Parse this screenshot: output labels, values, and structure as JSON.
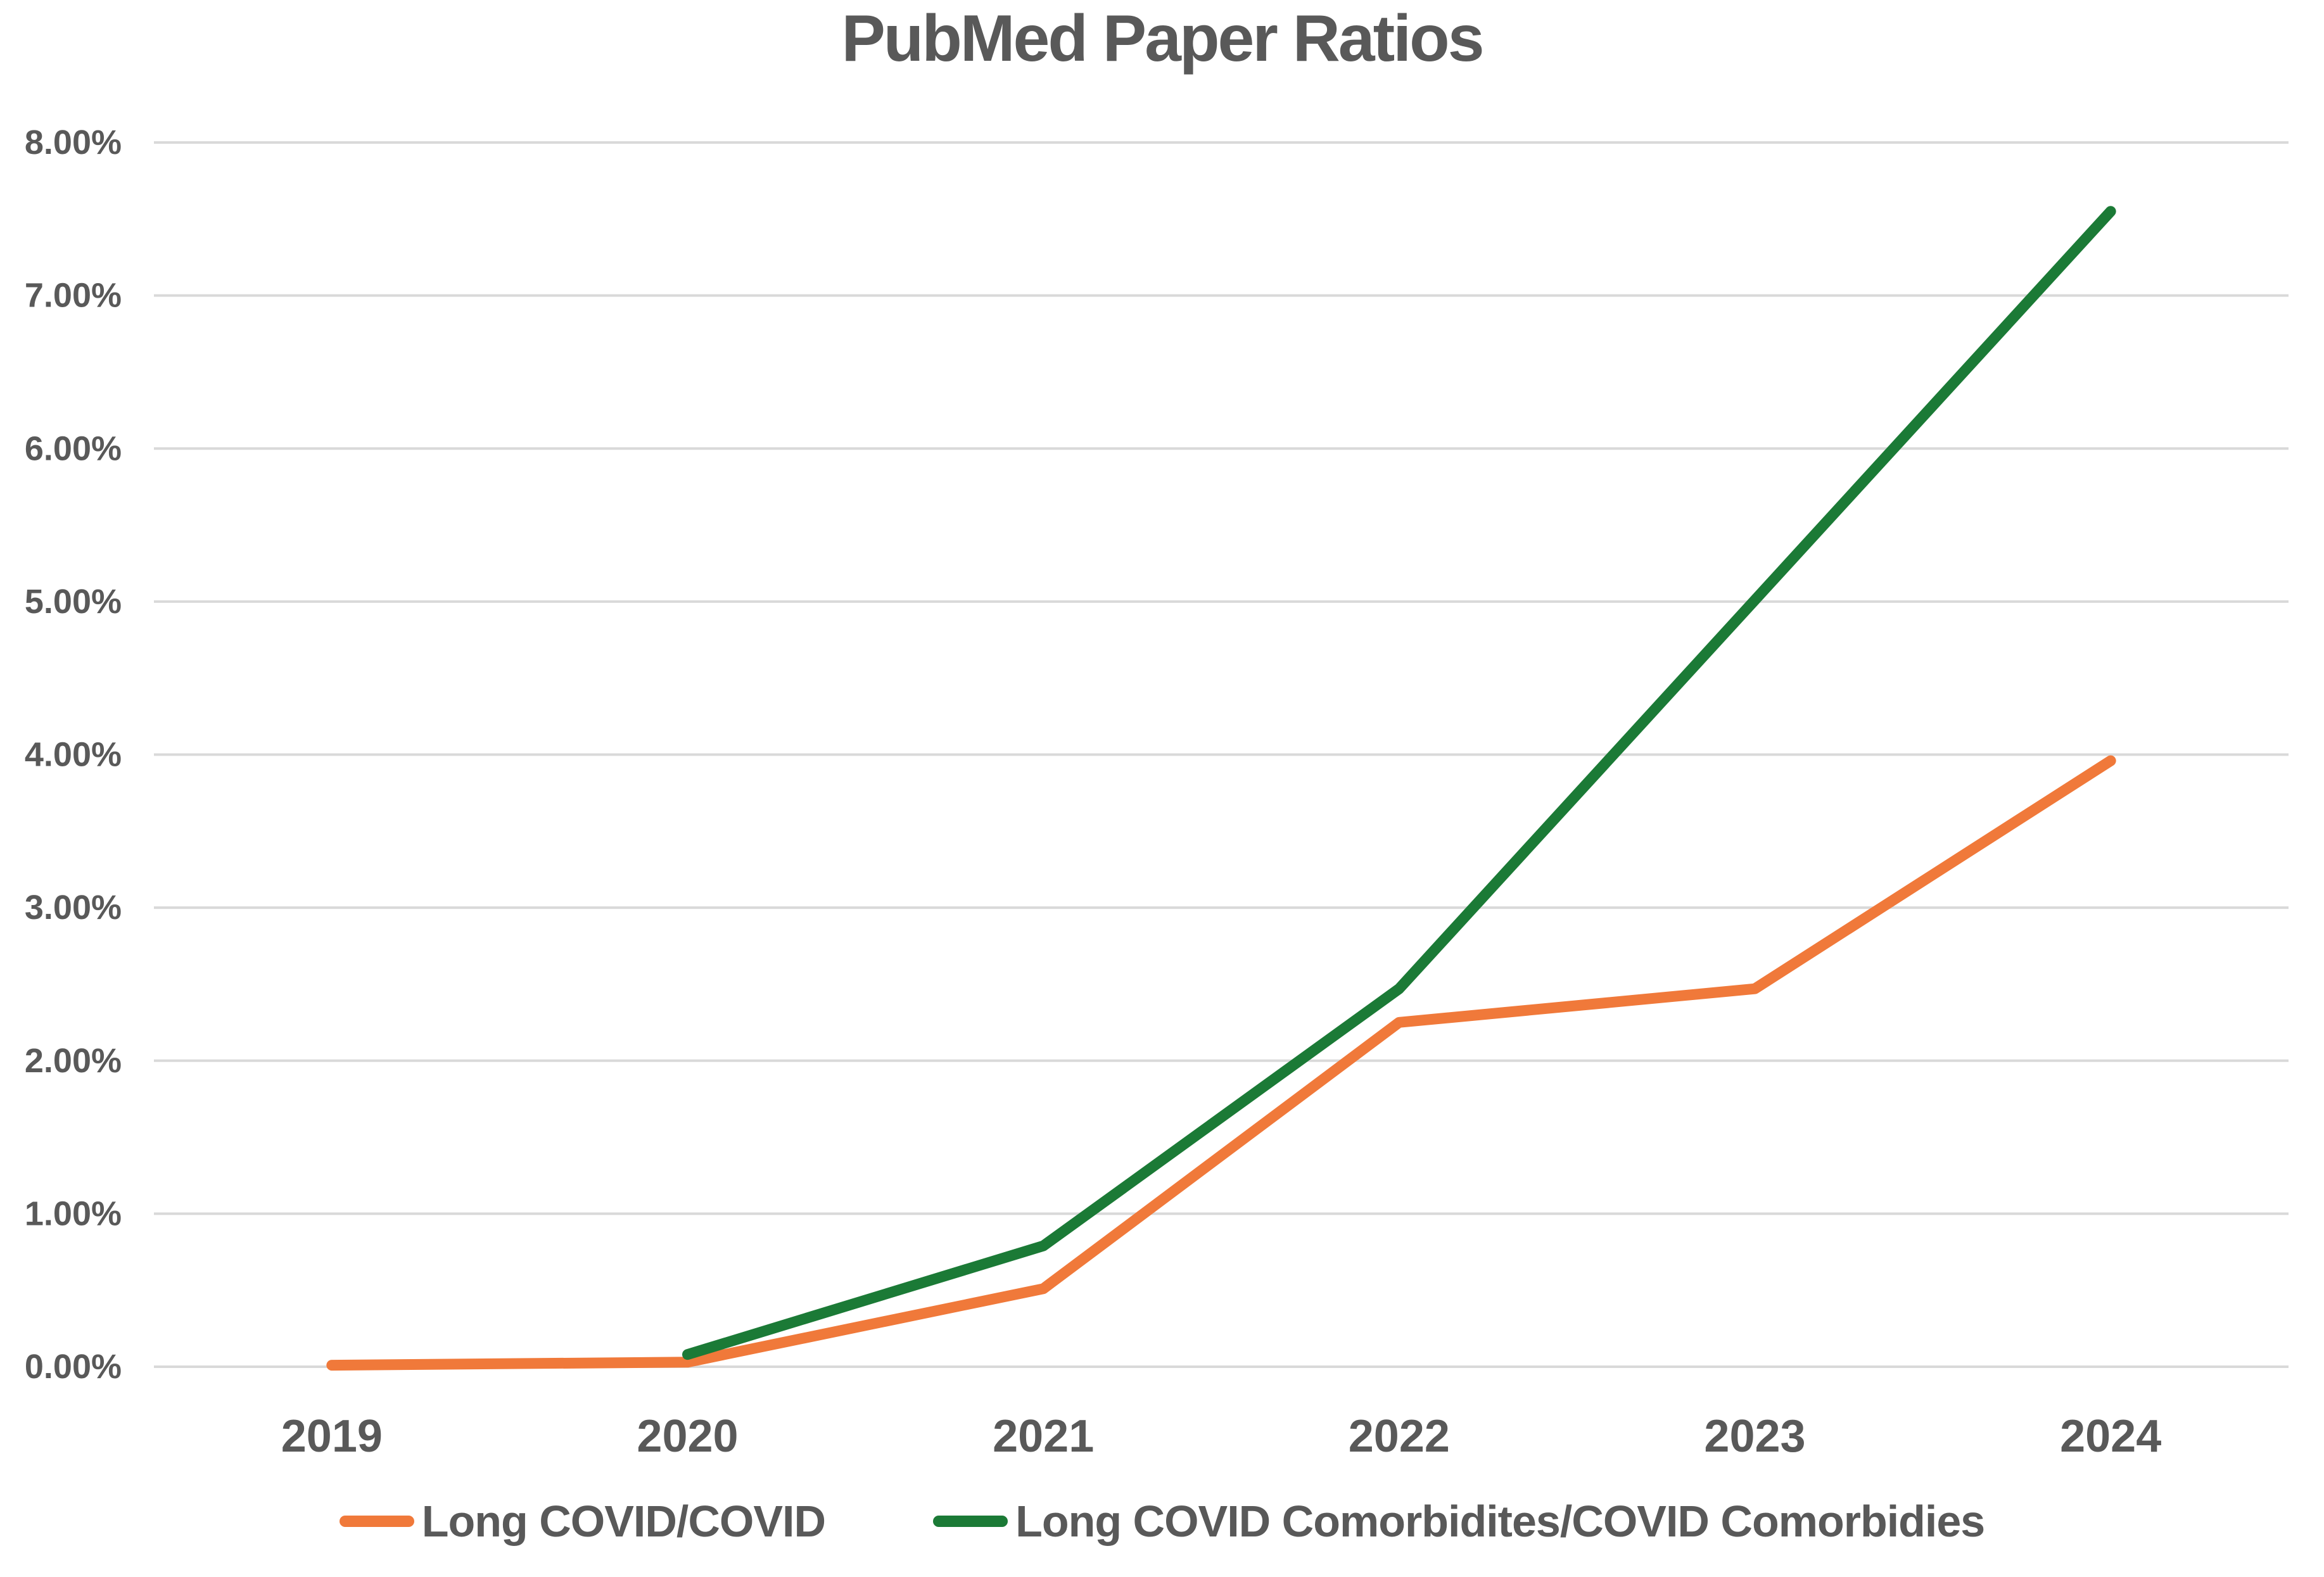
{
  "chart_data": {
    "type": "line",
    "title": "PubMed Paper Ratios",
    "categories": [
      "2019",
      "2020",
      "2021",
      "2022",
      "2023",
      "2024"
    ],
    "series": [
      {
        "name": "Long COVID/COVID",
        "color": "#F0793A",
        "values": [
          0.01,
          0.03,
          0.51,
          2.25,
          2.47,
          3.96
        ]
      },
      {
        "name": "Long COVID Comorbidites/COVID Comorbidies",
        "color": "#1B7A36",
        "values": [
          null,
          0.08,
          0.79,
          2.47,
          5.01,
          7.55
        ]
      }
    ],
    "xlabel": "",
    "ylabel": "",
    "values_unit": "percent",
    "y_axis": {
      "min": 0,
      "max": 8,
      "step": 1,
      "tick_labels": [
        "0.00%",
        "1.00%",
        "2.00%",
        "3.00%",
        "4.00%",
        "5.00%",
        "6.00%",
        "7.00%",
        "8.00%"
      ]
    },
    "grid": true,
    "legend_position": "bottom"
  },
  "colors": {
    "text": "#595959",
    "gridline": "#D9D9D9",
    "background": "#FFFFFF"
  }
}
